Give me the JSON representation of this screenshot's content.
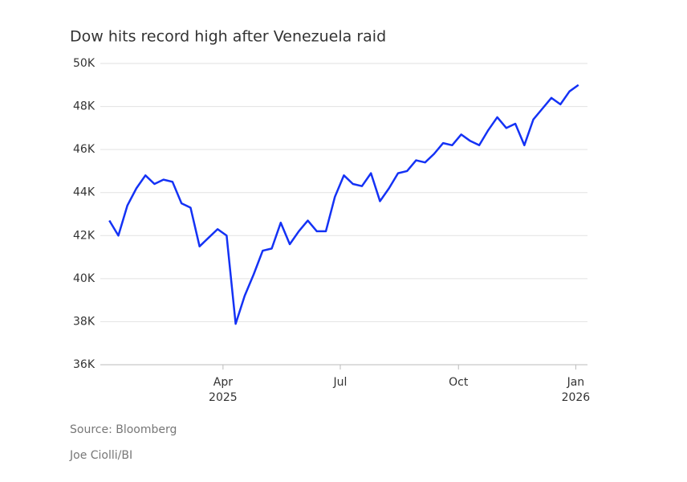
{
  "chart_data": {
    "type": "line",
    "title": "Dow hits record high after Venezuela raid",
    "series": [
      {
        "color": "#1432f5",
        "values": [
          42.7,
          42.0,
          43.4,
          44.2,
          44.8,
          44.4,
          44.6,
          44.5,
          43.5,
          43.3,
          41.5,
          41.9,
          42.3,
          42.0,
          37.9,
          39.2,
          40.2,
          41.3,
          41.4,
          42.6,
          41.6,
          42.2,
          42.7,
          42.2,
          42.2,
          43.8,
          44.8,
          44.4,
          44.3,
          44.9,
          43.6,
          44.2,
          44.9,
          45.0,
          45.5,
          45.4,
          45.8,
          46.3,
          46.2,
          46.7,
          46.4,
          46.2,
          46.9,
          47.5,
          47.0,
          47.2,
          46.2,
          47.4,
          47.9,
          48.4,
          48.1,
          48.7,
          49.0
        ]
      }
    ],
    "xlim": [
      -1,
      53
    ],
    "xticks": [
      {
        "value": 12.6,
        "label": "Apr",
        "year": "2025"
      },
      {
        "value": 25.6,
        "label": "Jul"
      },
      {
        "value": 38.7,
        "label": "Oct"
      },
      {
        "value": 51.7,
        "label": "Jan",
        "year": "2026"
      }
    ],
    "ylim": [
      36,
      50
    ],
    "yticks": [
      {
        "value": 36,
        "label": "36K"
      },
      {
        "value": 38,
        "label": "38K"
      },
      {
        "value": 40,
        "label": "40K"
      },
      {
        "value": 42,
        "label": "42K"
      },
      {
        "value": 44,
        "label": "44K"
      },
      {
        "value": 46,
        "label": "46K"
      },
      {
        "value": 48,
        "label": "48K"
      },
      {
        "value": 50,
        "label": "50K"
      }
    ],
    "grid": true,
    "source": "Source: Bloomberg",
    "credit": "Joe Ciolli/BI"
  }
}
